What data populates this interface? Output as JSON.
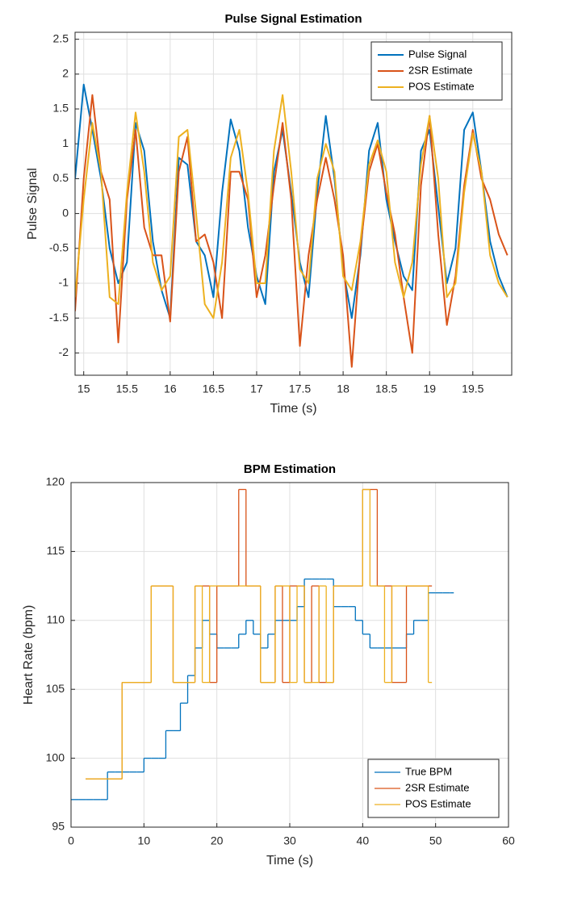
{
  "chart_data": [
    {
      "type": "line",
      "title": "Pulse Signal Estimation",
      "x_label": "Time (s)",
      "y_label": "Pulse Signal",
      "x": [
        14.9,
        15.0,
        15.1,
        15.2,
        15.3,
        15.4,
        15.5,
        15.6,
        15.7,
        15.8,
        15.9,
        16.0,
        16.1,
        16.2,
        16.3,
        16.4,
        16.5,
        16.6,
        16.7,
        16.8,
        16.9,
        17.0,
        17.1,
        17.2,
        17.3,
        17.4,
        17.5,
        17.6,
        17.7,
        17.8,
        17.9,
        18.0,
        18.1,
        18.2,
        18.3,
        18.4,
        18.5,
        18.6,
        18.7,
        18.8,
        18.9,
        19.0,
        19.1,
        19.2,
        19.3,
        19.4,
        19.5,
        19.6,
        19.7,
        19.8,
        19.9
      ],
      "series": [
        {
          "name": "Pulse Signal",
          "color": "#0072bd",
          "values": [
            0.5,
            1.85,
            1.2,
            0.5,
            -0.5,
            -1.0,
            -0.7,
            1.3,
            0.9,
            -0.4,
            -1.1,
            -1.5,
            0.8,
            0.7,
            -0.4,
            -0.6,
            -1.2,
            0.3,
            1.35,
            0.9,
            -0.2,
            -0.9,
            -1.3,
            0.6,
            1.2,
            0.3,
            -0.7,
            -1.2,
            0.3,
            1.4,
            0.5,
            -0.8,
            -1.5,
            -0.6,
            0.9,
            1.3,
            0.2,
            -0.4,
            -0.9,
            -1.1,
            0.9,
            1.2,
            0.1,
            -1.0,
            -0.5,
            1.2,
            1.45,
            0.6,
            -0.4,
            -0.9,
            -1.2
          ]
        },
        {
          "name": "2SR Estimate",
          "color": "#d95319",
          "values": [
            -1.4,
            0.5,
            1.7,
            0.6,
            0.2,
            -1.85,
            0.2,
            1.2,
            -0.2,
            -0.6,
            -0.6,
            -1.55,
            0.6,
            1.1,
            -0.4,
            -0.3,
            -0.7,
            -1.5,
            0.6,
            0.6,
            0.2,
            -1.2,
            -0.6,
            0.4,
            1.3,
            0.2,
            -1.9,
            -0.6,
            0.2,
            0.8,
            0.2,
            -0.6,
            -2.2,
            -0.5,
            0.6,
            1.0,
            0.3,
            -0.3,
            -1.2,
            -2.0,
            0.4,
            1.4,
            -0.3,
            -1.6,
            -0.9,
            0.4,
            1.2,
            0.5,
            0.2,
            -0.3,
            -0.6
          ]
        },
        {
          "name": "POS Estimate",
          "color": "#edb120",
          "values": [
            -1.2,
            0.2,
            1.3,
            0.6,
            -1.2,
            -1.3,
            0.3,
            1.45,
            0.6,
            -0.7,
            -1.1,
            -0.9,
            1.1,
            1.2,
            0.0,
            -1.3,
            -1.5,
            -0.7,
            0.8,
            1.2,
            0.3,
            -1.0,
            -1.0,
            0.9,
            1.7,
            0.6,
            -0.8,
            -1.0,
            0.5,
            1.0,
            0.6,
            -0.9,
            -1.1,
            -0.4,
            0.7,
            1.05,
            0.6,
            -0.7,
            -1.2,
            -0.7,
            0.7,
            1.4,
            0.5,
            -1.2,
            -1.0,
            0.3,
            1.15,
            0.6,
            -0.6,
            -1.0,
            -1.2
          ]
        }
      ],
      "xlim": [
        14.9,
        19.95
      ],
      "xticks": [
        15,
        15.5,
        16,
        16.5,
        17,
        17.5,
        18,
        18.5,
        19,
        19.5
      ],
      "ylim": [
        -2.32,
        2.6
      ],
      "yticks": [
        -2,
        -1.5,
        -1,
        -0.5,
        0,
        0.5,
        1,
        1.5,
        2,
        2.5
      ],
      "grid": true,
      "legend": "top-right",
      "step": false
    },
    {
      "type": "line",
      "title": "BPM Estimation",
      "x_label": "Time (s)",
      "y_label": "Heart Rate (bpm)",
      "x": [
        0,
        1,
        2,
        3,
        4,
        5,
        6,
        7,
        8,
        9,
        10,
        11,
        12,
        13,
        14,
        15,
        16,
        17,
        18,
        19,
        20,
        21,
        22,
        23,
        24,
        25,
        26,
        27,
        28,
        29,
        30,
        31,
        32,
        33,
        34,
        35,
        36,
        37,
        38,
        39,
        40,
        41,
        42,
        43,
        44,
        45,
        46,
        47,
        48,
        49,
        50,
        51,
        52
      ],
      "series": [
        {
          "name": "True BPM",
          "color": "#0072bd",
          "values": [
            97,
            97,
            97,
            97,
            97,
            99,
            99,
            99,
            99,
            99,
            100,
            100,
            100,
            102,
            102,
            104,
            106,
            108,
            110,
            109,
            108,
            108,
            108,
            109,
            110,
            109,
            108,
            109,
            110,
            110,
            110,
            111,
            113,
            113,
            113,
            113,
            111,
            111,
            111,
            110,
            109,
            108,
            108,
            108,
            108,
            108,
            109,
            110,
            110,
            112,
            112,
            112,
            112
          ]
        },
        {
          "name": "2SR Estimate",
          "color": "#d95319",
          "values": [
            null,
            null,
            98.5,
            98.5,
            98.5,
            98.5,
            98.5,
            105.5,
            105.5,
            105.5,
            105.5,
            112.5,
            112.5,
            112.5,
            105.5,
            105.5,
            105.5,
            112.5,
            112.5,
            105.5,
            112.5,
            112.5,
            112.5,
            119.5,
            112.5,
            112.5,
            105.5,
            105.5,
            112.5,
            105.5,
            112.5,
            112.5,
            105.5,
            112.5,
            105.5,
            105.5,
            112.5,
            112.5,
            112.5,
            112.5,
            119.5,
            119.5,
            112.5,
            112.5,
            105.5,
            105.5,
            112.5,
            112.5,
            112.5,
            112.5,
            null,
            null,
            null
          ]
        },
        {
          "name": "POS Estimate",
          "color": "#edb120",
          "values": [
            null,
            null,
            98.5,
            98.5,
            98.5,
            98.5,
            98.5,
            105.5,
            105.5,
            105.5,
            105.5,
            112.5,
            112.5,
            112.5,
            105.5,
            105.5,
            105.5,
            112.5,
            105.5,
            112.5,
            112.5,
            112.5,
            112.5,
            112.5,
            112.5,
            112.5,
            105.5,
            105.5,
            112.5,
            112.5,
            105.5,
            112.5,
            105.5,
            105.5,
            112.5,
            105.5,
            112.5,
            112.5,
            112.5,
            112.5,
            119.5,
            112.5,
            112.5,
            105.5,
            112.5,
            112.5,
            112.5,
            112.5,
            112.5,
            105.5,
            null,
            null,
            null
          ]
        }
      ],
      "xlim": [
        0,
        60
      ],
      "xticks": [
        0,
        10,
        20,
        30,
        40,
        50,
        60
      ],
      "ylim": [
        95,
        120
      ],
      "yticks": [
        95,
        100,
        105,
        110,
        115,
        120
      ],
      "grid": true,
      "legend": "bottom-right",
      "step": true
    }
  ]
}
